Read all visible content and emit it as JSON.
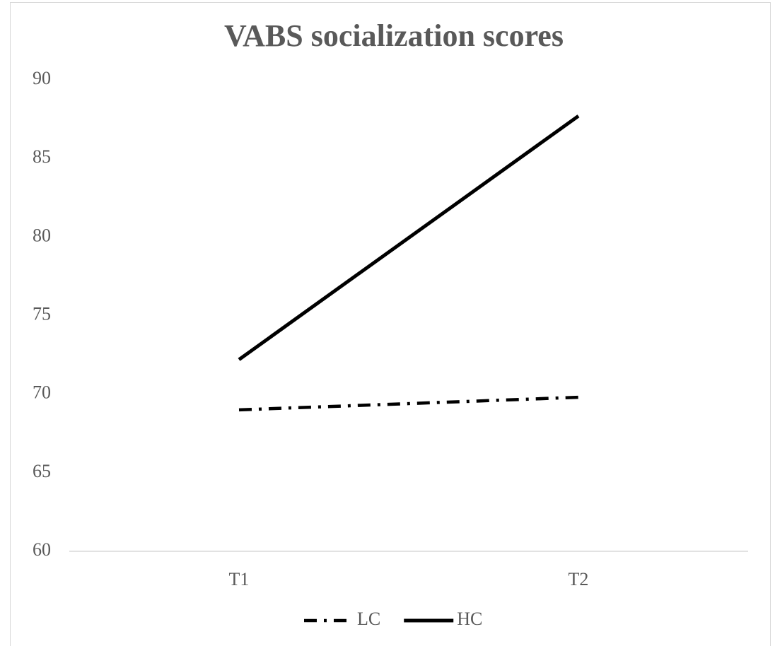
{
  "chart_data": {
    "type": "line",
    "title": "VABS socialization scores",
    "categories": [
      "T1",
      "T2"
    ],
    "series": [
      {
        "name": "LC",
        "color": "#000000",
        "dash": "dashdot",
        "values": [
          69.0,
          69.8
        ]
      },
      {
        "name": "HC",
        "color": "#000000",
        "dash": "solid",
        "values": [
          72.2,
          87.7
        ]
      }
    ],
    "ylim": [
      60,
      90
    ],
    "yticks": [
      60,
      65,
      70,
      75,
      80,
      85,
      90
    ],
    "grid": false,
    "legend": "bottom"
  }
}
